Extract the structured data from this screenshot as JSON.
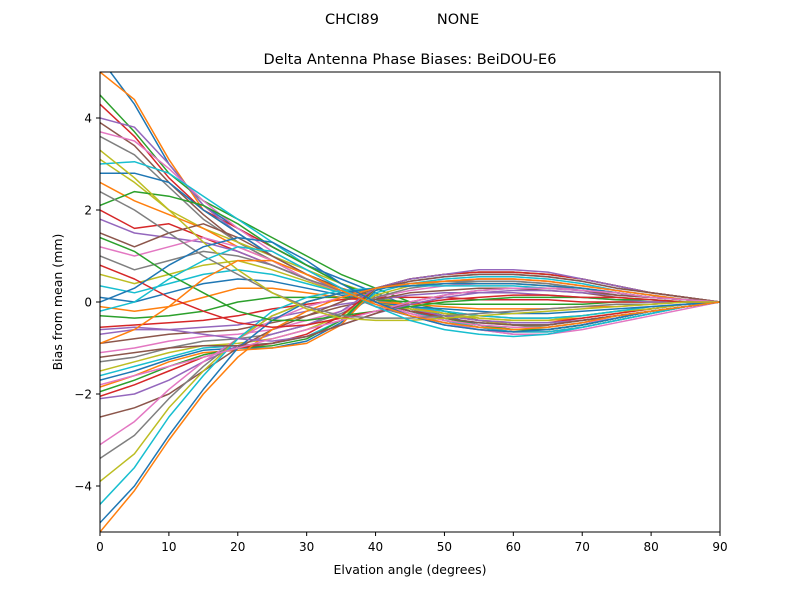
{
  "figure": {
    "suptitle_left": "CHCI89",
    "suptitle_right": "NONE"
  },
  "chart_data": {
    "type": "line",
    "title": "Delta Antenna Phase Biases: BeiDOU-E6",
    "xlabel": "Elvation angle (degrees)",
    "ylabel": "Bias from mean (mm)",
    "xlim": [
      0,
      90
    ],
    "ylim": [
      -5,
      5
    ],
    "xticks": [
      0,
      10,
      20,
      30,
      40,
      50,
      60,
      70,
      80,
      90
    ],
    "yticks": [
      -4,
      -2,
      0,
      2,
      4
    ],
    "grid": false,
    "legend": "none",
    "x": [
      0,
      5,
      10,
      15,
      20,
      25,
      30,
      35,
      40,
      45,
      50,
      55,
      60,
      65,
      70,
      75,
      80,
      85,
      90
    ],
    "colors": [
      "#1f77b4",
      "#ff7f0e",
      "#2ca02c",
      "#d62728",
      "#9467bd",
      "#8c564b",
      "#e377c2",
      "#7f7f7f",
      "#bcbd22",
      "#17becf"
    ],
    "series": [
      {
        "values": [
          5.3,
          4.3,
          3.0,
          2.1,
          1.6,
          1.2,
          0.8,
          0.5,
          0.2,
          -0.1,
          -0.3,
          -0.5,
          -0.6,
          -0.6,
          -0.5,
          -0.35,
          -0.2,
          -0.1,
          0
        ]
      },
      {
        "values": [
          5.0,
          4.4,
          3.1,
          2.0,
          1.5,
          1.0,
          0.6,
          0.3,
          0.1,
          -0.2,
          -0.4,
          -0.5,
          -0.6,
          -0.6,
          -0.5,
          -0.35,
          -0.2,
          -0.1,
          0
        ]
      },
      {
        "values": [
          4.5,
          3.7,
          2.8,
          2.2,
          1.8,
          1.4,
          1.0,
          0.6,
          0.3,
          0.0,
          -0.2,
          -0.4,
          -0.5,
          -0.55,
          -0.45,
          -0.3,
          -0.2,
          -0.1,
          0
        ]
      },
      {
        "values": [
          4.3,
          3.6,
          2.7,
          2.0,
          1.6,
          1.2,
          0.8,
          0.4,
          0.1,
          -0.2,
          -0.4,
          -0.55,
          -0.65,
          -0.65,
          -0.55,
          -0.4,
          -0.25,
          -0.1,
          0
        ]
      },
      {
        "values": [
          4.0,
          3.8,
          3.0,
          2.1,
          1.5,
          1.0,
          0.6,
          0.2,
          -0.1,
          -0.3,
          -0.5,
          -0.6,
          -0.7,
          -0.7,
          -0.55,
          -0.4,
          -0.25,
          -0.1,
          0
        ]
      },
      {
        "values": [
          3.9,
          3.4,
          2.6,
          1.9,
          1.3,
          0.9,
          0.5,
          0.2,
          0.0,
          -0.2,
          -0.3,
          -0.4,
          -0.5,
          -0.5,
          -0.4,
          -0.3,
          -0.2,
          -0.1,
          0
        ]
      },
      {
        "values": [
          3.7,
          3.5,
          2.9,
          2.2,
          1.6,
          1.1,
          0.7,
          0.3,
          0.0,
          -0.25,
          -0.45,
          -0.6,
          -0.7,
          -0.7,
          -0.6,
          -0.45,
          -0.3,
          -0.15,
          0
        ]
      },
      {
        "values": [
          3.6,
          3.2,
          2.5,
          1.8,
          1.3,
          0.9,
          0.5,
          0.2,
          -0.1,
          -0.3,
          -0.45,
          -0.55,
          -0.6,
          -0.6,
          -0.5,
          -0.35,
          -0.2,
          -0.1,
          0
        ]
      },
      {
        "values": [
          3.1,
          2.6,
          2.0,
          1.6,
          1.3,
          1.0,
          0.7,
          0.4,
          0.15,
          -0.1,
          -0.25,
          -0.4,
          -0.5,
          -0.5,
          -0.4,
          -0.3,
          -0.2,
          -0.1,
          0
        ]
      },
      {
        "values": [
          3.0,
          3.05,
          2.8,
          2.3,
          1.8,
          1.3,
          0.8,
          0.4,
          0.05,
          -0.2,
          -0.4,
          -0.55,
          -0.65,
          -0.65,
          -0.55,
          -0.4,
          -0.25,
          -0.1,
          0
        ]
      },
      {
        "values": [
          2.8,
          2.8,
          2.6,
          2.0,
          1.5,
          1.0,
          0.6,
          0.3,
          0.0,
          -0.2,
          -0.35,
          -0.45,
          -0.5,
          -0.5,
          -0.4,
          -0.3,
          -0.2,
          -0.1,
          0
        ]
      },
      {
        "values": [
          2.6,
          2.2,
          1.9,
          1.6,
          1.2,
          0.9,
          0.6,
          0.3,
          0.1,
          -0.1,
          -0.25,
          -0.35,
          -0.4,
          -0.4,
          -0.35,
          -0.25,
          -0.15,
          -0.05,
          0
        ]
      },
      {
        "values": [
          2.1,
          2.4,
          2.3,
          2.1,
          1.7,
          1.2,
          0.8,
          0.4,
          0.1,
          -0.15,
          -0.35,
          -0.5,
          -0.6,
          -0.6,
          -0.5,
          -0.35,
          -0.2,
          -0.1,
          0
        ]
      },
      {
        "values": [
          2.0,
          1.6,
          1.7,
          1.4,
          1.1,
          0.8,
          0.5,
          0.2,
          0.0,
          -0.2,
          -0.3,
          -0.4,
          -0.45,
          -0.45,
          -0.35,
          -0.25,
          -0.15,
          -0.05,
          0
        ]
      },
      {
        "values": [
          1.8,
          1.5,
          1.4,
          1.3,
          1.1,
          0.8,
          0.5,
          0.2,
          0.0,
          -0.15,
          -0.3,
          -0.4,
          -0.45,
          -0.45,
          -0.4,
          -0.3,
          -0.2,
          -0.1,
          0
        ]
      },
      {
        "values": [
          1.5,
          1.2,
          1.5,
          1.7,
          1.4,
          1.0,
          0.6,
          0.3,
          0.0,
          -0.2,
          -0.35,
          -0.45,
          -0.5,
          -0.5,
          -0.4,
          -0.3,
          -0.2,
          -0.1,
          0
        ]
      },
      {
        "values": [
          1.2,
          1.0,
          1.2,
          1.4,
          1.2,
          0.9,
          0.5,
          0.2,
          -0.05,
          -0.25,
          -0.4,
          -0.5,
          -0.55,
          -0.55,
          -0.45,
          -0.35,
          -0.2,
          -0.1,
          0
        ]
      },
      {
        "values": [
          1.0,
          0.7,
          0.9,
          1.1,
          1.0,
          0.8,
          0.5,
          0.25,
          0.05,
          -0.1,
          -0.2,
          -0.3,
          -0.35,
          -0.35,
          -0.3,
          -0.2,
          -0.15,
          -0.05,
          0
        ]
      },
      {
        "values": [
          0.6,
          0.4,
          0.6,
          0.8,
          0.9,
          0.7,
          0.45,
          0.2,
          0.0,
          -0.15,
          -0.25,
          -0.35,
          -0.4,
          -0.4,
          -0.3,
          -0.2,
          -0.15,
          -0.05,
          0
        ]
      },
      {
        "values": [
          0.35,
          0.2,
          0.4,
          0.6,
          0.7,
          0.6,
          0.4,
          0.2,
          0.0,
          -0.1,
          -0.2,
          -0.3,
          -0.35,
          -0.35,
          -0.3,
          -0.2,
          -0.1,
          -0.05,
          0
        ]
      },
      {
        "values": [
          0.1,
          0.0,
          0.2,
          0.4,
          0.5,
          0.45,
          0.3,
          0.15,
          0.0,
          -0.1,
          -0.15,
          -0.2,
          -0.25,
          -0.25,
          -0.2,
          -0.15,
          -0.1,
          -0.05,
          0
        ]
      },
      {
        "values": [
          -0.1,
          -0.2,
          -0.1,
          0.1,
          0.3,
          0.3,
          0.2,
          0.1,
          0.0,
          -0.05,
          -0.1,
          -0.15,
          -0.15,
          -0.15,
          -0.1,
          -0.1,
          -0.05,
          0.0,
          0
        ]
      },
      {
        "values": [
          -0.3,
          -0.35,
          -0.3,
          -0.2,
          0.0,
          0.1,
          0.1,
          0.1,
          0.05,
          0.0,
          -0.05,
          -0.05,
          -0.05,
          -0.05,
          -0.05,
          0.0,
          0.0,
          0.0,
          0
        ]
      },
      {
        "values": [
          -0.55,
          -0.5,
          -0.45,
          -0.4,
          -0.3,
          -0.15,
          -0.05,
          0.05,
          0.1,
          0.1,
          0.1,
          0.05,
          0.05,
          0.05,
          0.0,
          0.0,
          0.0,
          0.0,
          0
        ]
      },
      {
        "values": [
          -0.7,
          -0.6,
          -0.6,
          -0.55,
          -0.5,
          -0.35,
          -0.2,
          -0.05,
          0.05,
          0.15,
          0.2,
          0.2,
          0.2,
          0.15,
          0.1,
          0.05,
          0.0,
          0.0,
          0
        ]
      },
      {
        "values": [
          -0.9,
          -0.8,
          -0.7,
          -0.65,
          -0.6,
          -0.45,
          -0.3,
          -0.1,
          0.05,
          0.2,
          0.25,
          0.3,
          0.3,
          0.25,
          0.2,
          0.1,
          0.05,
          0.0,
          0
        ]
      },
      {
        "values": [
          -1.1,
          -1.0,
          -0.85,
          -0.75,
          -0.7,
          -0.6,
          -0.4,
          -0.2,
          0.1,
          0.25,
          0.35,
          0.4,
          0.4,
          0.35,
          0.25,
          0.15,
          0.1,
          0.05,
          0
        ]
      },
      {
        "values": [
          -1.3,
          -1.2,
          -1.0,
          -0.85,
          -0.8,
          -0.7,
          -0.5,
          -0.25,
          0.1,
          0.3,
          0.4,
          0.45,
          0.45,
          0.4,
          0.3,
          0.2,
          0.1,
          0.05,
          0
        ]
      },
      {
        "values": [
          -1.5,
          -1.3,
          -1.1,
          -0.95,
          -0.9,
          -0.8,
          -0.6,
          -0.3,
          0.15,
          0.35,
          0.45,
          0.5,
          0.5,
          0.45,
          0.35,
          0.25,
          0.15,
          0.05,
          0
        ]
      },
      {
        "values": [
          -1.6,
          -1.4,
          -1.2,
          -1.0,
          -0.95,
          -0.9,
          -0.75,
          -0.4,
          0.2,
          0.4,
          0.5,
          0.55,
          0.55,
          0.5,
          0.4,
          0.25,
          0.15,
          0.05,
          0
        ]
      },
      {
        "values": [
          -1.7,
          -1.5,
          -1.25,
          -1.05,
          -1.0,
          -1.0,
          -0.85,
          -0.45,
          0.25,
          0.45,
          0.55,
          0.6,
          0.6,
          0.55,
          0.45,
          0.3,
          0.2,
          0.1,
          0
        ]
      },
      {
        "values": [
          -1.85,
          -1.6,
          -1.3,
          -1.1,
          -1.05,
          -1.0,
          -0.9,
          -0.5,
          0.3,
          0.5,
          0.6,
          0.65,
          0.65,
          0.6,
          0.5,
          0.35,
          0.2,
          0.1,
          0
        ]
      },
      {
        "values": [
          -1.95,
          -1.7,
          -1.4,
          -1.15,
          -1.0,
          -0.95,
          -0.8,
          -0.4,
          0.3,
          0.5,
          0.6,
          0.65,
          0.65,
          0.6,
          0.5,
          0.35,
          0.2,
          0.1,
          0
        ]
      },
      {
        "values": [
          -2.05,
          -1.8,
          -1.5,
          -1.2,
          -1.0,
          -0.9,
          -0.7,
          -0.3,
          0.3,
          0.5,
          0.6,
          0.65,
          0.65,
          0.6,
          0.5,
          0.35,
          0.2,
          0.1,
          0
        ]
      },
      {
        "values": [
          -2.1,
          -2.0,
          -1.7,
          -1.3,
          -0.95,
          -0.7,
          -0.5,
          -0.2,
          0.3,
          0.5,
          0.6,
          0.7,
          0.7,
          0.65,
          0.5,
          0.35,
          0.2,
          0.1,
          0
        ]
      },
      {
        "values": [
          -2.5,
          -2.3,
          -2.0,
          -1.5,
          -1.0,
          -0.6,
          -0.3,
          0.0,
          0.3,
          0.45,
          0.55,
          0.6,
          0.6,
          0.55,
          0.45,
          0.3,
          0.2,
          0.1,
          0
        ]
      },
      {
        "values": [
          -3.1,
          -2.6,
          -1.9,
          -1.3,
          -0.8,
          -0.4,
          -0.1,
          0.1,
          0.3,
          0.4,
          0.45,
          0.5,
          0.5,
          0.45,
          0.35,
          0.25,
          0.15,
          0.05,
          0
        ]
      },
      {
        "values": [
          -3.4,
          -2.9,
          -2.1,
          -1.4,
          -0.8,
          -0.3,
          0.0,
          0.2,
          0.3,
          0.4,
          0.45,
          0.45,
          0.45,
          0.4,
          0.3,
          0.2,
          0.1,
          0.05,
          0
        ]
      },
      {
        "values": [
          -3.9,
          -3.3,
          -2.3,
          -1.5,
          -0.8,
          -0.3,
          0.0,
          0.2,
          0.3,
          0.35,
          0.4,
          0.4,
          0.4,
          0.35,
          0.3,
          0.2,
          0.1,
          0.05,
          0
        ]
      },
      {
        "values": [
          -4.4,
          -3.6,
          -2.5,
          -1.6,
          -0.8,
          -0.2,
          0.1,
          0.25,
          0.3,
          0.35,
          0.35,
          0.35,
          0.35,
          0.3,
          0.25,
          0.15,
          0.1,
          0.05,
          0
        ]
      },
      {
        "values": [
          -4.8,
          -4.0,
          -2.9,
          -1.9,
          -1.0,
          -0.4,
          0.0,
          0.2,
          0.3,
          0.35,
          0.4,
          0.4,
          0.4,
          0.35,
          0.3,
          0.2,
          0.1,
          0.05,
          0
        ]
      },
      {
        "values": [
          -5.0,
          -4.1,
          -3.0,
          -2.0,
          -1.2,
          -0.6,
          -0.2,
          0.1,
          0.3,
          0.4,
          0.45,
          0.5,
          0.5,
          0.45,
          0.35,
          0.25,
          0.15,
          0.05,
          0
        ]
      },
      {
        "values": [
          1.4,
          1.1,
          0.6,
          0.2,
          -0.2,
          -0.4,
          -0.4,
          -0.3,
          -0.2,
          -0.1,
          0.0,
          0.05,
          0.1,
          0.1,
          0.1,
          0.05,
          0.05,
          0.0,
          0
        ]
      },
      {
        "values": [
          0.8,
          0.5,
          0.1,
          -0.2,
          -0.45,
          -0.55,
          -0.5,
          -0.35,
          -0.2,
          -0.05,
          0.05,
          0.1,
          0.15,
          0.15,
          0.1,
          0.1,
          0.05,
          0.0,
          0
        ]
      },
      {
        "values": [
          -0.6,
          -0.55,
          -0.6,
          -0.7,
          -0.8,
          -0.85,
          -0.75,
          -0.5,
          -0.25,
          -0.05,
          0.1,
          0.2,
          0.25,
          0.25,
          0.2,
          0.15,
          0.1,
          0.05,
          0
        ]
      },
      {
        "values": [
          -1.2,
          -1.1,
          -1.0,
          -0.95,
          -0.95,
          -0.9,
          -0.75,
          -0.5,
          -0.25,
          0.0,
          0.15,
          0.25,
          0.3,
          0.3,
          0.25,
          0.15,
          0.1,
          0.05,
          0
        ]
      },
      {
        "values": [
          -1.8,
          -1.6,
          -1.4,
          -1.2,
          -1.0,
          -0.8,
          -0.6,
          -0.4,
          -0.2,
          0.0,
          0.15,
          0.25,
          0.3,
          0.3,
          0.25,
          0.2,
          0.1,
          0.05,
          0
        ]
      },
      {
        "values": [
          2.4,
          2.0,
          1.5,
          1.0,
          0.6,
          0.2,
          -0.1,
          -0.3,
          -0.35,
          -0.35,
          -0.3,
          -0.25,
          -0.2,
          -0.15,
          -0.1,
          -0.05,
          -0.05,
          0.0,
          0
        ]
      },
      {
        "values": [
          3.3,
          2.7,
          2.0,
          1.3,
          0.7,
          0.2,
          -0.15,
          -0.35,
          -0.4,
          -0.4,
          -0.35,
          -0.3,
          -0.25,
          -0.2,
          -0.15,
          -0.1,
          -0.05,
          0.0,
          0
        ]
      },
      {
        "values": [
          -0.2,
          0.0,
          0.5,
          0.9,
          1.2,
          1.1,
          0.7,
          0.3,
          -0.1,
          -0.4,
          -0.6,
          -0.7,
          -0.75,
          -0.7,
          -0.55,
          -0.4,
          -0.25,
          -0.1,
          0
        ]
      },
      {
        "values": [
          0.0,
          0.3,
          0.8,
          1.2,
          1.4,
          1.3,
          0.9,
          0.4,
          0.0,
          -0.3,
          -0.5,
          -0.6,
          -0.65,
          -0.6,
          -0.5,
          -0.35,
          -0.2,
          -0.1,
          0
        ]
      },
      {
        "values": [
          -0.9,
          -0.6,
          -0.1,
          0.5,
          0.9,
          0.9,
          0.6,
          0.25,
          -0.05,
          -0.3,
          -0.45,
          -0.55,
          -0.6,
          -0.55,
          -0.45,
          -0.3,
          -0.2,
          -0.1,
          0
        ]
      }
    ]
  }
}
